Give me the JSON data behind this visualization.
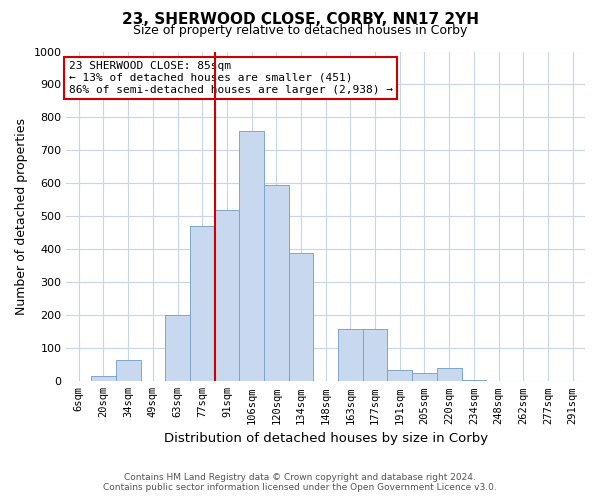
{
  "title": "23, SHERWOOD CLOSE, CORBY, NN17 2YH",
  "subtitle": "Size of property relative to detached houses in Corby",
  "xlabel": "Distribution of detached houses by size in Corby",
  "ylabel": "Number of detached properties",
  "bar_labels": [
    "6sqm",
    "20sqm",
    "34sqm",
    "49sqm",
    "63sqm",
    "77sqm",
    "91sqm",
    "106sqm",
    "120sqm",
    "134sqm",
    "148sqm",
    "163sqm",
    "177sqm",
    "191sqm",
    "205sqm",
    "220sqm",
    "234sqm",
    "248sqm",
    "262sqm",
    "277sqm",
    "291sqm"
  ],
  "bar_values": [
    0,
    15,
    65,
    0,
    200,
    470,
    520,
    760,
    595,
    390,
    0,
    160,
    160,
    35,
    25,
    40,
    5,
    0,
    0,
    0,
    0
  ],
  "bar_color": "#c8d8ee",
  "bar_edge_color": "#7da6cc",
  "vline_color": "#cc0000",
  "annotation_text": "23 SHERWOOD CLOSE: 85sqm\n← 13% of detached houses are smaller (451)\n86% of semi-detached houses are larger (2,938) →",
  "annotation_box_edgecolor": "#cc0000",
  "annotation_box_facecolor": "#ffffff",
  "ylim": [
    0,
    1000
  ],
  "yticks": [
    0,
    100,
    200,
    300,
    400,
    500,
    600,
    700,
    800,
    900,
    1000
  ],
  "footer_line1": "Contains HM Land Registry data © Crown copyright and database right 2024.",
  "footer_line2": "Contains public sector information licensed under the Open Government Licence v3.0.",
  "bg_color": "#ffffff",
  "grid_color": "#c8d4e8"
}
